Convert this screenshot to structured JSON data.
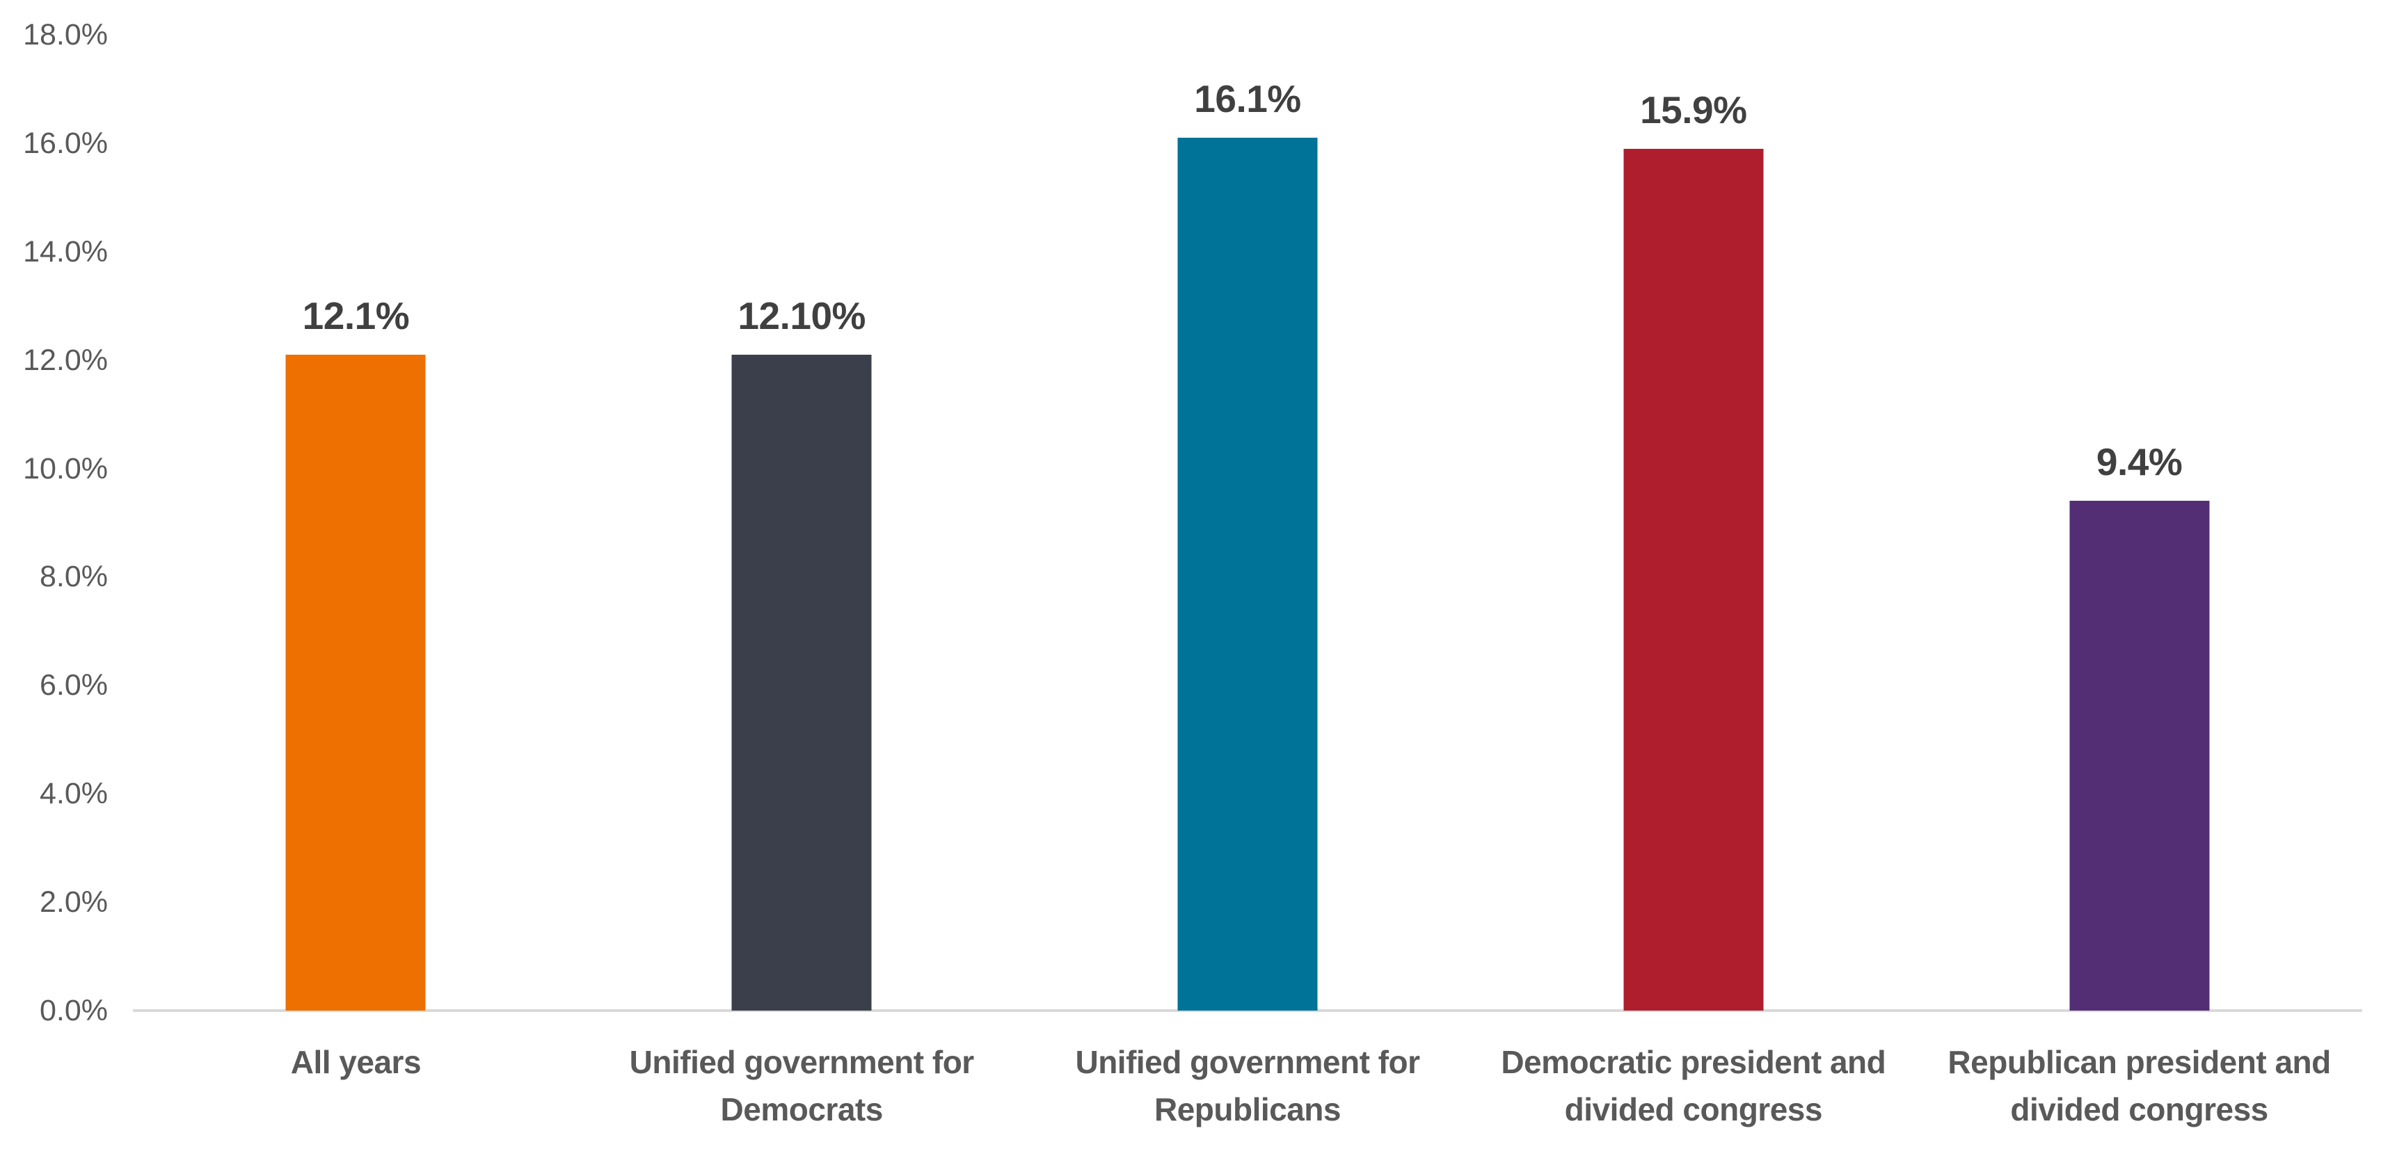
{
  "chart_data": {
    "type": "bar",
    "title": "",
    "categories": [
      "All years",
      "Unified government for Democrats",
      "Unified government for Republicans",
      "Democratic president and divided congress",
      "Republican president and divided congress"
    ],
    "category_lines": [
      [
        "All years"
      ],
      [
        "Unified government for",
        "Democrats"
      ],
      [
        "Unified government for",
        "Republicans"
      ],
      [
        "Democratic president and",
        "divided congress"
      ],
      [
        "Republican president and",
        "divided congress"
      ]
    ],
    "values": [
      12.1,
      12.1,
      16.1,
      15.9,
      9.4
    ],
    "bar_labels": [
      "12.1%",
      "12.10%",
      "16.1%",
      "15.9%",
      "9.4%"
    ],
    "bar_colors": [
      "#ED7000",
      "#3A3F4B",
      "#007399",
      "#AF1E2D",
      "#542E74"
    ],
    "ylabel": "",
    "xlabel": "",
    "ylim": [
      0,
      18
    ],
    "yticks": [
      {
        "value": 0,
        "label": "0.0%"
      },
      {
        "value": 2,
        "label": "2.0%"
      },
      {
        "value": 4,
        "label": "4.0%"
      },
      {
        "value": 6,
        "label": "6.0%"
      },
      {
        "value": 8,
        "label": "8.0%"
      },
      {
        "value": 10,
        "label": "10.0%"
      },
      {
        "value": 12,
        "label": "12.0%"
      },
      {
        "value": 14,
        "label": "14.0%"
      },
      {
        "value": 16,
        "label": "16.0%"
      },
      {
        "value": 18,
        "label": "18.0%"
      }
    ],
    "grid": false,
    "legend_position": "none",
    "colors": {
      "background": "#FFFFFF",
      "axis_line": "#D9D9D9",
      "axis_text": "#595959",
      "data_label_text": "#404040"
    }
  }
}
